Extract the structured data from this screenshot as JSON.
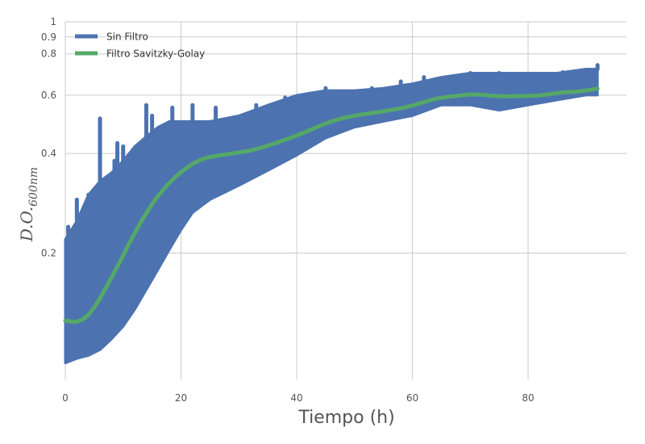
{
  "chart_data": {
    "type": "line",
    "xlabel": "Tiempo (h)",
    "ylabel": {
      "main": "D.O.",
      "subscript": "600nm"
    },
    "y_scale": "log",
    "xlim": [
      0,
      97
    ],
    "ylim": [
      0.083,
      1.0
    ],
    "x_ticks": [
      0,
      20,
      40,
      60,
      80
    ],
    "y_ticks": [
      {
        "value": 0.2,
        "label": "0.2"
      },
      {
        "value": 0.4,
        "label": "0.4"
      },
      {
        "value": 0.6,
        "label": "0.6"
      },
      {
        "value": 0.8,
        "label": "0.8"
      },
      {
        "value": 0.9,
        "label": "0.9"
      },
      {
        "value": 1.0,
        "label": "1"
      }
    ],
    "grid": true,
    "legend": "top-left",
    "series": [
      {
        "name": "Sin Filtro",
        "color": "#4c72b0",
        "kind": "band",
        "x": [
          0,
          2,
          4,
          6,
          8,
          10,
          12,
          14,
          16,
          18,
          20,
          22,
          25,
          30,
          35,
          40,
          45,
          50,
          55,
          60,
          65,
          70,
          75,
          80,
          85,
          90,
          92
        ],
        "y_low": [
          0.093,
          0.096,
          0.098,
          0.102,
          0.11,
          0.12,
          0.135,
          0.155,
          0.178,
          0.205,
          0.235,
          0.265,
          0.29,
          0.32,
          0.355,
          0.395,
          0.445,
          0.48,
          0.5,
          0.52,
          0.56,
          0.56,
          0.54,
          0.56,
          0.58,
          0.6,
          0.6
        ],
        "y_high": [
          0.22,
          0.25,
          0.3,
          0.33,
          0.35,
          0.38,
          0.42,
          0.45,
          0.48,
          0.5,
          0.5,
          0.5,
          0.5,
          0.52,
          0.56,
          0.6,
          0.62,
          0.62,
          0.63,
          0.65,
          0.68,
          0.7,
          0.7,
          0.7,
          0.7,
          0.72,
          0.72
        ],
        "peaks": [
          {
            "x": 0.5,
            "y": 0.24
          },
          {
            "x": 2,
            "y": 0.29
          },
          {
            "x": 4,
            "y": 0.3
          },
          {
            "x": 6,
            "y": 0.51
          },
          {
            "x": 8.5,
            "y": 0.38
          },
          {
            "x": 9,
            "y": 0.43
          },
          {
            "x": 10,
            "y": 0.42
          },
          {
            "x": 14,
            "y": 0.56
          },
          {
            "x": 15,
            "y": 0.52
          },
          {
            "x": 18.5,
            "y": 0.55
          },
          {
            "x": 22,
            "y": 0.56
          },
          {
            "x": 26,
            "y": 0.55
          },
          {
            "x": 33,
            "y": 0.56
          },
          {
            "x": 38,
            "y": 0.59
          },
          {
            "x": 45,
            "y": 0.63
          },
          {
            "x": 53,
            "y": 0.63
          },
          {
            "x": 58,
            "y": 0.66
          },
          {
            "x": 62,
            "y": 0.68
          },
          {
            "x": 70,
            "y": 0.7
          },
          {
            "x": 75,
            "y": 0.7
          },
          {
            "x": 86,
            "y": 0.7
          },
          {
            "x": 92,
            "y": 0.74
          }
        ]
      },
      {
        "name": "Filtro Savitzky-Golay",
        "color": "#55a868",
        "kind": "line",
        "x": [
          0,
          1,
          2,
          3,
          4,
          5,
          6,
          7,
          8,
          9,
          10,
          11,
          12,
          13,
          14,
          15,
          16,
          17,
          18,
          19,
          20,
          21,
          22,
          23,
          24,
          25,
          26,
          28,
          30,
          32,
          34,
          36,
          38,
          40,
          42,
          44,
          46,
          48,
          50,
          52,
          54,
          56,
          58,
          60,
          62,
          64,
          66,
          68,
          70,
          72,
          74,
          76,
          78,
          80,
          82,
          84,
          86,
          88,
          90,
          92
        ],
        "y": [
          0.125,
          0.124,
          0.124,
          0.126,
          0.13,
          0.137,
          0.146,
          0.157,
          0.169,
          0.182,
          0.197,
          0.213,
          0.23,
          0.247,
          0.264,
          0.281,
          0.297,
          0.312,
          0.326,
          0.339,
          0.351,
          0.362,
          0.372,
          0.38,
          0.386,
          0.39,
          0.393,
          0.398,
          0.403,
          0.408,
          0.417,
          0.428,
          0.44,
          0.453,
          0.468,
          0.485,
          0.5,
          0.512,
          0.52,
          0.527,
          0.533,
          0.54,
          0.548,
          0.558,
          0.572,
          0.585,
          0.593,
          0.598,
          0.603,
          0.602,
          0.597,
          0.595,
          0.596,
          0.597,
          0.599,
          0.605,
          0.612,
          0.614,
          0.62,
          0.628
        ]
      }
    ]
  }
}
